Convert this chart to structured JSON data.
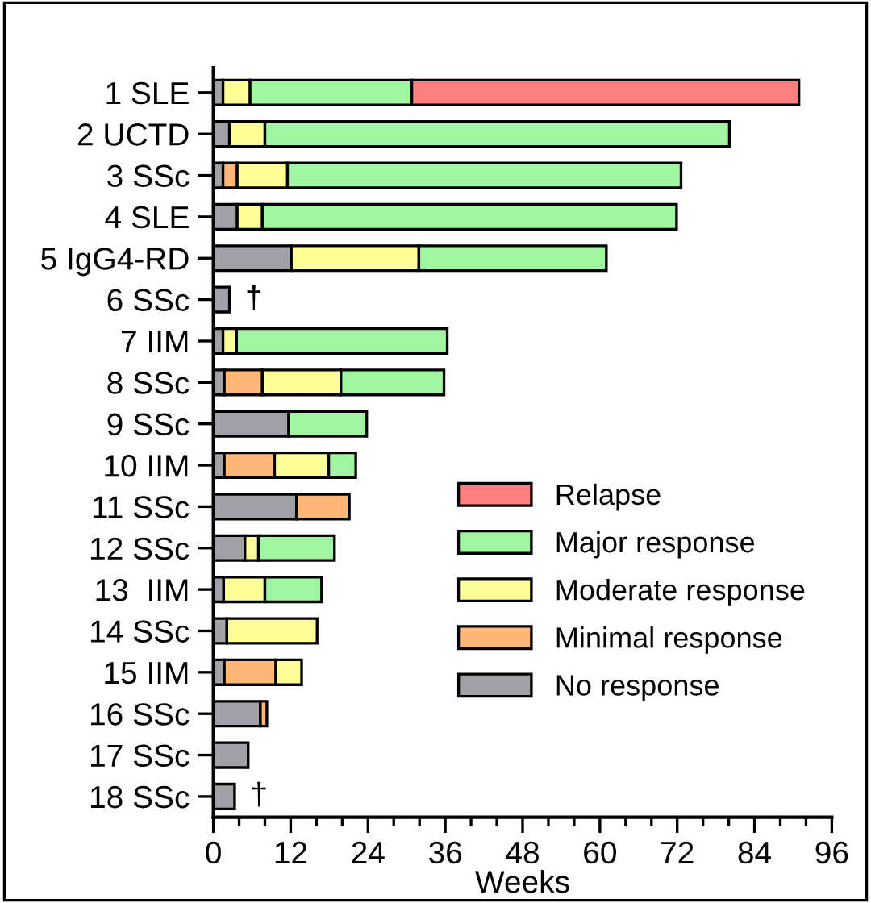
{
  "chart_data": {
    "type": "bar",
    "orientation": "horizontal",
    "stacked": true,
    "xlabel": "Weeks",
    "categories": [
      "1 SLE",
      "2 UCTD",
      "3 SSc",
      "4 SLE",
      "5 IgG4-RD",
      "6 SSc",
      "7 IIM",
      "8 SSc",
      "9 SSc",
      "10 IIM",
      "11 SSc",
      "12 SSc",
      "13  IIM",
      "14 SSc",
      "15 IIM",
      "16 SSc",
      "17 SSc",
      "18 SSc"
    ],
    "series": [
      {
        "name": "No response",
        "color": "#a0a0a6",
        "values": [
          1.5,
          2.5,
          1.5,
          3.7,
          12.1,
          2.5,
          1.5,
          1.7,
          11.7,
          1.7,
          12.9,
          4.9,
          1.6,
          2.1,
          1.7,
          7.3,
          5.4,
          3.3
        ]
      },
      {
        "name": "Minimal response",
        "color": "#ffb877",
        "values": [
          null,
          null,
          2.2,
          null,
          null,
          null,
          null,
          5.9,
          null,
          7.8,
          8.2,
          null,
          null,
          null,
          8.0,
          1.0,
          null,
          null
        ]
      },
      {
        "name": "Moderate response",
        "color": "#ffff99",
        "values": [
          4.2,
          5.5,
          7.8,
          3.9,
          19.8,
          null,
          2.1,
          12.2,
          null,
          8.4,
          null,
          2.1,
          6.4,
          14.0,
          4.0,
          null,
          null,
          null
        ]
      },
      {
        "name": "Major response",
        "color": "#a0f5a0",
        "values": [
          25.1,
          72.1,
          61.1,
          64.3,
          29.1,
          null,
          32.7,
          16.0,
          12.1,
          4.2,
          null,
          11.8,
          8.8,
          null,
          null,
          null,
          null,
          null
        ]
      },
      {
        "name": "Relapse",
        "color": "#ff7f7f",
        "values": [
          60.1,
          null,
          null,
          null,
          null,
          null,
          null,
          null,
          null,
          null,
          null,
          null,
          null,
          null,
          null,
          null,
          null,
          null
        ]
      }
    ],
    "xlim": [
      0,
      96
    ],
    "xticks": [
      0,
      {
        "value": 4,
        "label": null
      },
      {
        "value": 8,
        "label": null
      },
      12,
      {
        "value": 16,
        "label": null
      },
      {
        "value": 20,
        "label": null
      },
      24,
      {
        "value": 28,
        "label": null
      },
      {
        "value": 32,
        "label": null
      },
      36,
      {
        "value": 40,
        "label": null
      },
      {
        "value": 44,
        "label": null
      },
      48,
      {
        "value": 52,
        "label": null
      },
      {
        "value": 56,
        "label": null
      },
      60,
      {
        "value": 64,
        "label": null
      },
      {
        "value": 68,
        "label": null
      },
      72,
      {
        "value": 76,
        "label": null
      },
      {
        "value": 80,
        "label": null
      },
      84,
      {
        "value": 88,
        "label": null
      },
      {
        "value": 92,
        "label": null
      },
      96
    ],
    "annotations": [
      {
        "text": "†",
        "x": 2.5,
        "y": "6 SSc"
      },
      {
        "text": "†",
        "x": 3.3,
        "y": "18 SSc"
      }
    ],
    "legend": "right",
    "grid": false
  }
}
